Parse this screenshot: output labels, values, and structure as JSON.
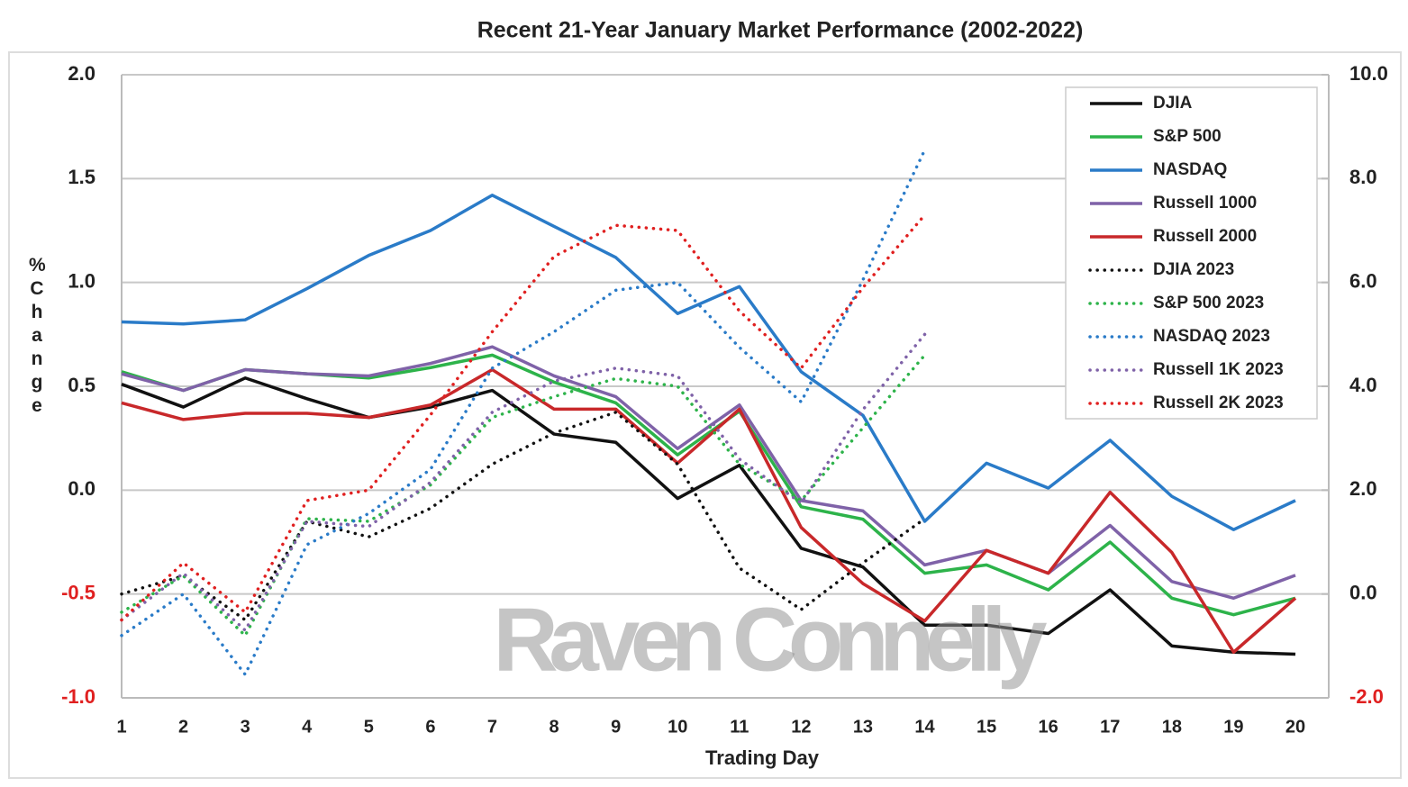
{
  "chart_data": {
    "type": "line",
    "title": "Recent 21-Year January Market Performance (2002-2022)",
    "x_label": "Trading Day",
    "y_label": "% Change",
    "annotation": "Raven Connelly",
    "categories": [
      "1",
      "2",
      "3",
      "4",
      "5",
      "6",
      "7",
      "8",
      "9",
      "10",
      "11",
      "12",
      "13",
      "14",
      "15",
      "16",
      "17",
      "18",
      "19",
      "20"
    ],
    "ylim": [
      -1,
      2
    ],
    "yticks": [
      {
        "value": -1,
        "label": "-1.0",
        "color": "#e02020"
      },
      {
        "value": -0.5,
        "label": "-0.5",
        "color": "#e02020"
      },
      {
        "value": 0,
        "label": "0.0"
      },
      {
        "value": 0.5,
        "label": "0.5"
      },
      {
        "value": 1,
        "label": "1.0"
      },
      {
        "value": 1.5,
        "label": "1.5"
      },
      {
        "value": 2,
        "label": "2.0"
      }
    ],
    "y2lim": [
      -2,
      10
    ],
    "y2ticks": [
      {
        "value": -2,
        "label": "-2.0",
        "color": "#e02020"
      },
      {
        "value": 0,
        "label": "0.0"
      },
      {
        "value": 2,
        "label": "2.0"
      },
      {
        "value": 4,
        "label": "4.0"
      },
      {
        "value": 6,
        "label": "6.0"
      },
      {
        "value": 8,
        "label": "8.0"
      },
      {
        "value": 10,
        "label": "10.0"
      }
    ],
    "grid": true,
    "legend": "upper right",
    "series": [
      {
        "name": "DJIA",
        "color": "#111111",
        "style": "solid",
        "values": [
          0.51,
          0.4,
          0.54,
          0.44,
          0.35,
          0.4,
          0.48,
          0.27,
          0.23,
          -0.04,
          0.12,
          -0.28,
          -0.37,
          -0.65,
          -0.65,
          -0.69,
          -0.48,
          -0.75,
          -0.78,
          -0.79
        ]
      },
      {
        "name": "S&P 500",
        "color": "#2db34a",
        "style": "solid",
        "values": [
          0.57,
          0.48,
          0.58,
          0.56,
          0.54,
          0.59,
          0.65,
          0.52,
          0.42,
          0.17,
          0.38,
          -0.08,
          -0.14,
          -0.4,
          -0.36,
          -0.48,
          -0.25,
          -0.52,
          -0.6,
          -0.52
        ]
      },
      {
        "name": "NASDAQ",
        "color": "#2a7bc8",
        "style": "solid",
        "values": [
          0.81,
          0.8,
          0.82,
          0.97,
          1.13,
          1.25,
          1.42,
          1.27,
          1.12,
          0.85,
          0.98,
          0.57,
          0.36,
          -0.15,
          0.13,
          0.01,
          0.24,
          -0.03,
          -0.19,
          -0.05
        ]
      },
      {
        "name": "Russell 1000",
        "color": "#7f62a8",
        "style": "solid",
        "values": [
          0.56,
          0.48,
          0.58,
          0.56,
          0.55,
          0.61,
          0.69,
          0.55,
          0.45,
          0.2,
          0.41,
          -0.05,
          -0.1,
          -0.36,
          -0.29,
          -0.4,
          -0.17,
          -0.44,
          -0.52,
          -0.41
        ]
      },
      {
        "name": "Russell 2000",
        "color": "#c8282a",
        "style": "solid",
        "values": [
          0.42,
          0.34,
          0.37,
          0.37,
          0.35,
          0.41,
          0.58,
          0.39,
          0.39,
          0.13,
          0.39,
          -0.18,
          -0.45,
          -0.63,
          -0.29,
          -0.4,
          -0.01,
          -0.3,
          -0.78,
          -0.52
        ]
      },
      {
        "name": "DJIA 2023",
        "color": "#111111",
        "style": "dotted",
        "axis": "y2",
        "values": [
          0.0,
          0.35,
          -0.5,
          1.4,
          1.1,
          1.65,
          2.5,
          3.1,
          3.5,
          2.5,
          0.5,
          -0.3,
          0.6,
          1.45,
          null,
          null,
          null,
          null,
          null,
          null
        ]
      },
      {
        "name": "S&P 500 2023",
        "color": "#2db34a",
        "style": "dotted",
        "axis": "y2",
        "values": [
          -0.35,
          0.35,
          -0.8,
          1.45,
          1.4,
          2.1,
          3.4,
          3.8,
          4.15,
          4.0,
          2.5,
          1.8,
          3.2,
          4.6,
          null,
          null,
          null,
          null,
          null,
          null
        ]
      },
      {
        "name": "NASDAQ 2023",
        "color": "#2a7bc8",
        "style": "dotted",
        "axis": "y2",
        "values": [
          -0.8,
          0.0,
          -1.55,
          0.95,
          1.55,
          2.4,
          4.35,
          5.05,
          5.85,
          6.0,
          4.75,
          3.7,
          6.05,
          8.55,
          null,
          null,
          null,
          null,
          null,
          null
        ]
      },
      {
        "name": "Russell 1K 2023",
        "color": "#7f62a8",
        "style": "dotted",
        "axis": "y2",
        "values": [
          -0.5,
          0.4,
          -0.7,
          1.4,
          1.3,
          2.15,
          3.5,
          4.1,
          4.35,
          4.2,
          2.6,
          1.75,
          3.55,
          5.0,
          null,
          null,
          null,
          null,
          null,
          null
        ]
      },
      {
        "name": "Russell 2K 2023",
        "color": "#e02020",
        "style": "dotted",
        "axis": "y2",
        "values": [
          -0.5,
          0.6,
          -0.35,
          1.8,
          2.0,
          3.45,
          5.05,
          6.5,
          7.1,
          7.0,
          5.45,
          4.35,
          5.9,
          7.3,
          null,
          null,
          null,
          null,
          null,
          null
        ]
      }
    ]
  }
}
